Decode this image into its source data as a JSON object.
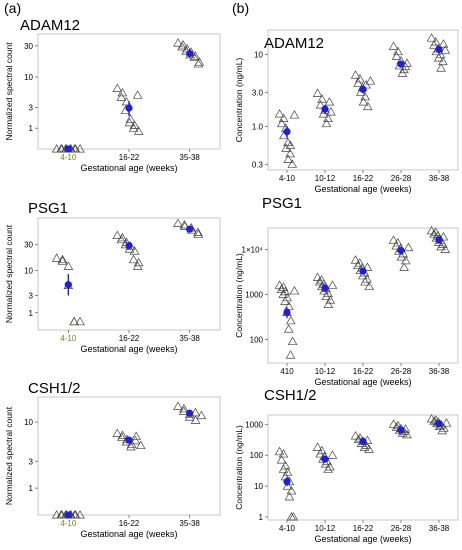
{
  "panel_labels": [
    "(a)",
    "(b)"
  ],
  "colors": {
    "mean": "#1f1fd6",
    "marker": "#444444",
    "frame": "#bbbbbb",
    "first_tick": "#6b8e23"
  },
  "chart_data": [
    {
      "id": "a1",
      "type": "scatter",
      "title": "ADAM12",
      "xlabel": "Gestational age (weeks)",
      "ylabel": "Normalized spectral count",
      "categories": [
        "4-10",
        "16-22",
        "35-38"
      ],
      "scale": "log1p",
      "yticks": [
        1,
        3,
        10,
        30
      ],
      "yticklabels": [
        "1",
        "3",
        "10",
        "30"
      ],
      "ylim": [
        0,
        45
      ],
      "points": [
        [
          0,
          0
        ],
        [
          0,
          0
        ],
        [
          0,
          0
        ],
        [
          0,
          0
        ],
        [
          0,
          0
        ],
        [
          0,
          0
        ],
        [
          0,
          0
        ],
        [
          0,
          0
        ],
        [
          0,
          0
        ],
        [
          0,
          0
        ],
        [
          1,
          6.5
        ],
        [
          1,
          5.5
        ],
        [
          1,
          4.6
        ],
        [
          1,
          3.8
        ],
        [
          1,
          2.6
        ],
        [
          1,
          1.7
        ],
        [
          1,
          1.4
        ],
        [
          1,
          1.2
        ],
        [
          1,
          1.0
        ],
        [
          1,
          0.8
        ],
        [
          1,
          5.0
        ],
        [
          2,
          33
        ],
        [
          2,
          31
        ],
        [
          2,
          29
        ],
        [
          2,
          27
        ],
        [
          2,
          25
        ],
        [
          2,
          24
        ],
        [
          2,
          22
        ],
        [
          2,
          21
        ],
        [
          2,
          20
        ],
        [
          2,
          17
        ],
        [
          2,
          16
        ]
      ],
      "means": [
        {
          "x": 0,
          "y": 0,
          "lo": 0,
          "hi": 0
        },
        {
          "x": 1,
          "y": 2.9,
          "lo": 2.0,
          "hi": 3.9
        },
        {
          "x": 2,
          "y": 23,
          "lo": 20,
          "hi": 27
        }
      ]
    },
    {
      "id": "a2",
      "type": "scatter",
      "title": "PSG1",
      "xlabel": "Gestational age (weeks)",
      "ylabel": "Normalized spectral count",
      "categories": [
        "4-10",
        "16-22",
        "35-38"
      ],
      "scale": "log1p",
      "yticks": [
        1,
        3,
        10,
        30
      ],
      "yticklabels": [
        "1",
        "3",
        "10",
        "30"
      ],
      "ylim": [
        0,
        90
      ],
      "points": [
        [
          0,
          17
        ],
        [
          0,
          16
        ],
        [
          0,
          15
        ],
        [
          0,
          12
        ],
        [
          0,
          5
        ],
        [
          0,
          0.4
        ],
        [
          0,
          0.4
        ],
        [
          0,
          0.4
        ],
        [
          1,
          44
        ],
        [
          1,
          40
        ],
        [
          1,
          37
        ],
        [
          1,
          33
        ],
        [
          1,
          30
        ],
        [
          1,
          28
        ],
        [
          1,
          25
        ],
        [
          1,
          23
        ],
        [
          1,
          16
        ],
        [
          1,
          14
        ],
        [
          1,
          12
        ],
        [
          2,
          72
        ],
        [
          2,
          68
        ],
        [
          2,
          64
        ],
        [
          2,
          60
        ],
        [
          2,
          55
        ],
        [
          2,
          50
        ],
        [
          2,
          46
        ]
      ],
      "means": [
        {
          "x": 0,
          "y": 5.2,
          "lo": 3.0,
          "hi": 8.5
        },
        {
          "x": 1,
          "y": 29,
          "lo": 25,
          "hi": 33
        },
        {
          "x": 2,
          "y": 57,
          "lo": 52,
          "hi": 62
        }
      ]
    },
    {
      "id": "a3",
      "type": "scatter",
      "title": "CSH1/2",
      "xlabel": "Gestational age (weeks)",
      "ylabel": "Normalized spectral count",
      "categories": [
        "4-10",
        "16-22",
        "35-38"
      ],
      "scale": "log1p",
      "yticks": [
        1,
        3,
        10
      ],
      "yticklabels": [
        "1",
        "3",
        "10"
      ],
      "ylim": [
        0,
        20
      ],
      "points": [
        [
          0,
          0
        ],
        [
          0,
          0
        ],
        [
          0,
          0
        ],
        [
          0,
          0
        ],
        [
          0,
          0
        ],
        [
          0,
          0
        ],
        [
          0,
          0
        ],
        [
          0,
          0
        ],
        [
          0,
          0
        ],
        [
          0,
          0
        ],
        [
          1,
          7.2
        ],
        [
          1,
          6.8
        ],
        [
          1,
          6.4
        ],
        [
          1,
          6.0
        ],
        [
          1,
          5.6
        ],
        [
          1,
          5.2
        ],
        [
          1,
          4.8
        ],
        [
          1,
          6.6
        ],
        [
          1,
          5.8
        ],
        [
          1,
          5.0
        ],
        [
          2,
          15.5
        ],
        [
          2,
          14.5
        ],
        [
          2,
          13.5
        ],
        [
          2,
          12.5
        ],
        [
          2,
          11.5
        ],
        [
          2,
          10.5
        ],
        [
          2,
          13.0
        ],
        [
          2,
          12.0
        ]
      ],
      "means": [
        {
          "x": 0,
          "y": 0,
          "lo": 0,
          "hi": 0
        },
        {
          "x": 1,
          "y": 5.9,
          "lo": 5.4,
          "hi": 6.4
        },
        {
          "x": 2,
          "y": 12.8,
          "lo": 11.8,
          "hi": 13.8
        }
      ]
    },
    {
      "id": "b1",
      "type": "scatter",
      "title": "ADAM12",
      "xlabel": "Gestational age (weeks)",
      "ylabel": "Concentration (ng/mL)",
      "categories": [
        "4-10",
        "10-12",
        "16-22",
        "26-28",
        "36-38"
      ],
      "scale": "log10",
      "yticks": [
        0.3,
        1,
        3,
        10
      ],
      "yticklabels": [
        "0.3",
        "1.0",
        "3.0",
        "10"
      ],
      "ylim": [
        0.25,
        22
      ],
      "points": [
        [
          0,
          1.5
        ],
        [
          0,
          1.3
        ],
        [
          0,
          1.1
        ],
        [
          0,
          0.95
        ],
        [
          0,
          0.75
        ],
        [
          0,
          0.6
        ],
        [
          0,
          0.5
        ],
        [
          0,
          0.42
        ],
        [
          0,
          0.35
        ],
        [
          0,
          0.3
        ],
        [
          0,
          0.55
        ],
        [
          0,
          1.45
        ],
        [
          1,
          2.9
        ],
        [
          1,
          2.4
        ],
        [
          1,
          2.0
        ],
        [
          1,
          1.7
        ],
        [
          1,
          1.5
        ],
        [
          1,
          1.3
        ],
        [
          1,
          1.1
        ],
        [
          1,
          1.6
        ],
        [
          1,
          2.2
        ],
        [
          2,
          5.2
        ],
        [
          2,
          4.6
        ],
        [
          2,
          4.0
        ],
        [
          2,
          3.5
        ],
        [
          2,
          3.0
        ],
        [
          2,
          2.6
        ],
        [
          2,
          2.2
        ],
        [
          2,
          1.9
        ],
        [
          2,
          3.8
        ],
        [
          2,
          4.3
        ],
        [
          3,
          13
        ],
        [
          3,
          11
        ],
        [
          3,
          9.5
        ],
        [
          3,
          8.2
        ],
        [
          3,
          7.0
        ],
        [
          3,
          6.2
        ],
        [
          3,
          5.5
        ],
        [
          3,
          7.6
        ],
        [
          3,
          6.8
        ],
        [
          4,
          17
        ],
        [
          4,
          15
        ],
        [
          4,
          13.5
        ],
        [
          4,
          12
        ],
        [
          4,
          11
        ],
        [
          4,
          10
        ],
        [
          4,
          9
        ],
        [
          4,
          8
        ],
        [
          4,
          6.5
        ],
        [
          4,
          11.5
        ],
        [
          4,
          14
        ]
      ],
      "means": [
        {
          "x": 0,
          "y": 0.85,
          "lo": 0.7,
          "hi": 1.0
        },
        {
          "x": 1,
          "y": 1.75,
          "lo": 1.5,
          "hi": 2.0
        },
        {
          "x": 2,
          "y": 3.3,
          "lo": 2.9,
          "hi": 3.7
        },
        {
          "x": 3,
          "y": 7.4,
          "lo": 6.6,
          "hi": 8.2
        },
        {
          "x": 4,
          "y": 11.8,
          "lo": 10.5,
          "hi": 13.2
        }
      ]
    },
    {
      "id": "b2",
      "type": "scatter",
      "title": "PSG1",
      "xlabel": "Gestational age (weeks)",
      "ylabel": "Concentration (ng/mL)",
      "categories": [
        "410",
        "10-12",
        "16-22",
        "26-28",
        "36-38"
      ],
      "scale": "log10",
      "yticks": [
        100,
        1000,
        10000
      ],
      "yticklabels": [
        "100",
        "1000",
        "1×10⁴"
      ],
      "ylim": [
        30,
        30000
      ],
      "points": [
        [
          0,
          1600
        ],
        [
          0,
          1450
        ],
        [
          0,
          1300
        ],
        [
          0,
          1150
        ],
        [
          0,
          1000
        ],
        [
          0,
          850
        ],
        [
          0,
          700
        ],
        [
          0,
          550
        ],
        [
          0,
          400
        ],
        [
          0,
          260
        ],
        [
          0,
          170
        ],
        [
          0,
          90
        ],
        [
          0,
          45
        ],
        [
          0,
          1200
        ],
        [
          1,
          2400
        ],
        [
          1,
          2100
        ],
        [
          1,
          1900
        ],
        [
          1,
          1700
        ],
        [
          1,
          1500
        ],
        [
          1,
          1350
        ],
        [
          1,
          1200
        ],
        [
          1,
          1050
        ],
        [
          1,
          900
        ],
        [
          1,
          750
        ],
        [
          1,
          600
        ],
        [
          1,
          1600
        ],
        [
          2,
          5800
        ],
        [
          2,
          5000
        ],
        [
          2,
          4400
        ],
        [
          2,
          3900
        ],
        [
          2,
          3400
        ],
        [
          2,
          3000
        ],
        [
          2,
          2600
        ],
        [
          2,
          2200
        ],
        [
          2,
          1900
        ],
        [
          2,
          1500
        ],
        [
          2,
          4000
        ],
        [
          3,
          16000
        ],
        [
          3,
          14000
        ],
        [
          3,
          12000
        ],
        [
          3,
          10500
        ],
        [
          3,
          9200
        ],
        [
          3,
          8000
        ],
        [
          3,
          6800
        ],
        [
          3,
          5600
        ],
        [
          3,
          4000
        ],
        [
          3,
          11000
        ],
        [
          4,
          26000
        ],
        [
          4,
          24000
        ],
        [
          4,
          22000
        ],
        [
          4,
          20000
        ],
        [
          4,
          18000
        ],
        [
          4,
          16000
        ],
        [
          4,
          14500
        ],
        [
          4,
          13000
        ],
        [
          4,
          11500
        ],
        [
          4,
          10000
        ],
        [
          4,
          19000
        ]
      ],
      "means": [
        {
          "x": 0,
          "y": 400,
          "lo": 300,
          "hi": 520
        },
        {
          "x": 1,
          "y": 1400,
          "lo": 1250,
          "hi": 1550
        },
        {
          "x": 2,
          "y": 3300,
          "lo": 2800,
          "hi": 3800
        },
        {
          "x": 3,
          "y": 9500,
          "lo": 8500,
          "hi": 10500
        },
        {
          "x": 4,
          "y": 16500,
          "lo": 15000,
          "hi": 18000
        }
      ]
    },
    {
      "id": "b3",
      "type": "scatter",
      "title": "CSH1/2",
      "xlabel": "Gestational age (weeks)",
      "ylabel": "Concentration (ng/mL)",
      "categories": [
        "4-10",
        "10-12",
        "16-22",
        "26-28",
        "36-38"
      ],
      "scale": "log10",
      "yticks": [
        1,
        10,
        100,
        1000
      ],
      "yticklabels": [
        "1",
        "10",
        "100",
        "1000"
      ],
      "ylim": [
        0.8,
        2000
      ],
      "points": [
        [
          0,
          130
        ],
        [
          0,
          110
        ],
        [
          0,
          70
        ],
        [
          0,
          45
        ],
        [
          0,
          35
        ],
        [
          0,
          28
        ],
        [
          0,
          20
        ],
        [
          0,
          14
        ],
        [
          0,
          10
        ],
        [
          0,
          7
        ],
        [
          0,
          4.5
        ],
        [
          0,
          1
        ],
        [
          0,
          1
        ],
        [
          1,
          180
        ],
        [
          1,
          140
        ],
        [
          1,
          110
        ],
        [
          1,
          90
        ],
        [
          1,
          75
        ],
        [
          1,
          62
        ],
        [
          1,
          52
        ],
        [
          1,
          42
        ],
        [
          1,
          35
        ],
        [
          1,
          100
        ],
        [
          2,
          420
        ],
        [
          2,
          360
        ],
        [
          2,
          320
        ],
        [
          2,
          280
        ],
        [
          2,
          240
        ],
        [
          2,
          210
        ],
        [
          2,
          180
        ],
        [
          2,
          155
        ],
        [
          2,
          300
        ],
        [
          3,
          1000
        ],
        [
          3,
          900
        ],
        [
          3,
          800
        ],
        [
          3,
          720
        ],
        [
          3,
          640
        ],
        [
          3,
          580
        ],
        [
          3,
          520
        ],
        [
          3,
          460
        ],
        [
          3,
          700
        ],
        [
          4,
          1500
        ],
        [
          4,
          1350
        ],
        [
          4,
          1250
        ],
        [
          4,
          1150
        ],
        [
          4,
          1050
        ],
        [
          4,
          950
        ],
        [
          4,
          850
        ],
        [
          4,
          750
        ],
        [
          4,
          620
        ],
        [
          4,
          1100
        ]
      ],
      "means": [
        {
          "x": 0,
          "y": 14,
          "lo": 10,
          "hi": 20
        },
        {
          "x": 1,
          "y": 75,
          "lo": 62,
          "hi": 90
        },
        {
          "x": 2,
          "y": 280,
          "lo": 250,
          "hi": 315
        },
        {
          "x": 3,
          "y": 650,
          "lo": 600,
          "hi": 710
        },
        {
          "x": 4,
          "y": 1050,
          "lo": 950,
          "hi": 1150
        }
      ]
    }
  ]
}
